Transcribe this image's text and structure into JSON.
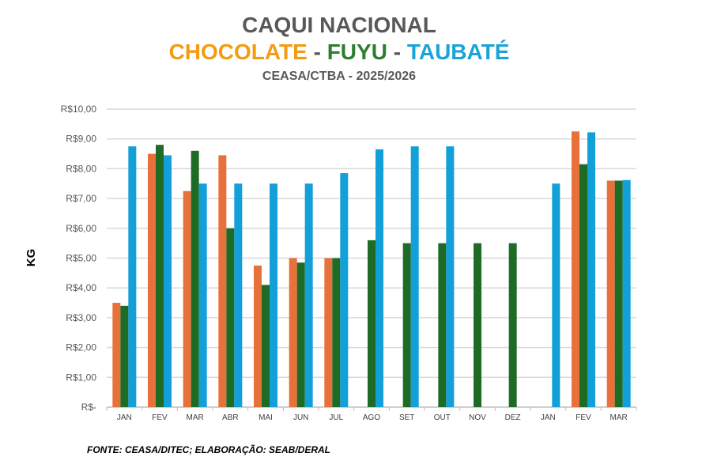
{
  "chart_data": {
    "type": "bar",
    "title": "CAQUI NACIONAL",
    "subtitle_parts": [
      {
        "text": "CHOCOLATE",
        "color": "#F39C12"
      },
      {
        "text": " - ",
        "color": "#595959"
      },
      {
        "text": "FUYU",
        "color": "#2E7D32"
      },
      {
        "text": " - ",
        "color": "#595959"
      },
      {
        "text": "TAUBATÉ",
        "color": "#1AA3D9"
      }
    ],
    "subtitle2": "CEASA/CTBA - 2025/2026",
    "ylabel": "KG",
    "ylim": [
      0,
      10
    ],
    "yticks": [
      "R$-",
      "R$1,00",
      "R$2,00",
      "R$3,00",
      "R$4,00",
      "R$5,00",
      "R$6,00",
      "R$7,00",
      "R$8,00",
      "R$9,00",
      "R$10,00"
    ],
    "grid": true,
    "categories": [
      "JAN",
      "FEV",
      "MAR",
      "ABR",
      "MAI",
      "JUN",
      "JUL",
      "AGO",
      "SET",
      "OUT",
      "NOV",
      "DEZ",
      "JAN",
      "FEV",
      "MAR"
    ],
    "series": [
      {
        "color": "#E8703A",
        "values": [
          3.5,
          8.5,
          7.25,
          8.45,
          4.75,
          5.0,
          5.0,
          null,
          null,
          null,
          null,
          null,
          null,
          9.25,
          7.6
        ]
      },
      {
        "color": "#1E6B26",
        "values": [
          3.4,
          8.8,
          8.6,
          6.0,
          4.1,
          4.85,
          5.0,
          5.6,
          5.5,
          5.5,
          5.5,
          5.5,
          null,
          8.15,
          7.6
        ]
      },
      {
        "color": "#139FD8",
        "values": [
          8.75,
          8.45,
          7.5,
          7.5,
          7.5,
          7.5,
          7.85,
          8.65,
          8.75,
          8.75,
          null,
          null,
          7.5,
          9.22,
          7.62
        ]
      }
    ],
    "source": "FONTE: CEASA/DITEC; ELABORAÇÃO: SEAB/DERAL"
  }
}
